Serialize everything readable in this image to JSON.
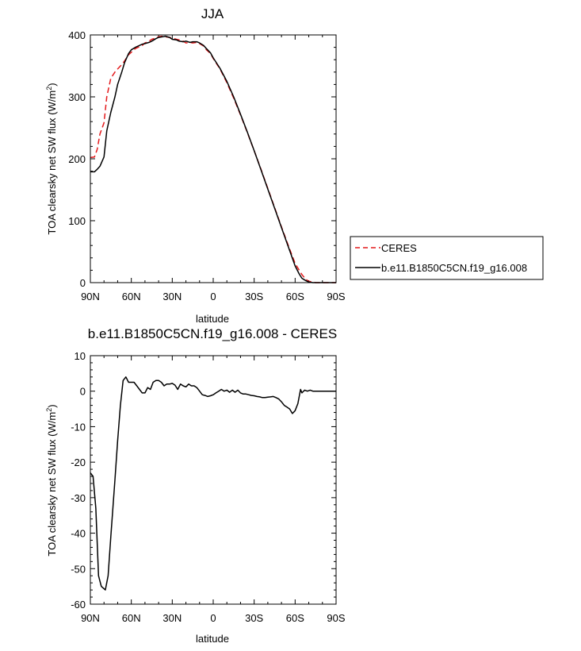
{
  "chart_data": [
    {
      "type": "line",
      "title": "JJA",
      "xlabel": "latitude",
      "ylabel": "TOA clearsky net SW flux (W/m²)",
      "ylabel_main": "TOA clearsky net SW flux (W/m",
      "ylabel_sup": "2",
      "ylabel_end": ")",
      "xlim": [
        90,
        -90
      ],
      "ylim": [
        0,
        400
      ],
      "xticks": [
        90,
        60,
        30,
        0,
        -30,
        -60,
        -90
      ],
      "xtick_labels": [
        "90N",
        "60N",
        "30N",
        "0",
        "30S",
        "60S",
        "90S"
      ],
      "yticks": [
        0,
        100,
        200,
        300,
        400
      ],
      "ytick_labels": [
        "0",
        "100",
        "200",
        "300",
        "400"
      ],
      "legend_position": "right",
      "series": [
        {
          "name": "CERES",
          "color": "#e41a1c",
          "dash": "dashed",
          "x": [
            90,
            87,
            85,
            83,
            80,
            78,
            75,
            72,
            70,
            67,
            65,
            62,
            60,
            57,
            55,
            52,
            50,
            47,
            45,
            42,
            40,
            37,
            35,
            32,
            30,
            27,
            25,
            22,
            20,
            17,
            15,
            12,
            10,
            7,
            5,
            2,
            0,
            -5,
            -10,
            -15,
            -20,
            -25,
            -30,
            -35,
            -40,
            -45,
            -50,
            -55,
            -60,
            -63,
            -65,
            -68,
            -70,
            -73,
            -75,
            -78,
            -80,
            -83,
            -85,
            -88,
            -90
          ],
          "y": [
            202,
            203,
            215,
            240,
            258,
            300,
            330,
            340,
            345,
            352,
            358,
            368,
            372,
            378,
            380,
            383,
            387,
            390,
            393,
            395,
            397,
            398,
            397,
            396,
            395,
            393,
            392,
            390,
            387,
            388,
            387,
            388,
            386,
            382,
            376,
            370,
            362,
            345,
            323,
            298,
            271,
            242,
            213,
            183,
            152,
            121,
            90,
            60,
            31,
            20,
            13,
            5,
            2,
            1,
            0,
            0,
            0,
            0,
            0,
            0,
            0
          ]
        },
        {
          "name": "b.e11.B1850C5CN.f19_g16.008",
          "color": "#000000",
          "dash": "solid",
          "x": [
            90,
            87,
            85,
            83,
            80,
            78,
            75,
            72,
            70,
            67,
            65,
            62,
            60,
            57,
            55,
            52,
            50,
            47,
            45,
            42,
            40,
            37,
            35,
            32,
            30,
            27,
            25,
            22,
            20,
            17,
            15,
            12,
            10,
            7,
            5,
            2,
            0,
            -5,
            -10,
            -15,
            -20,
            -25,
            -30,
            -35,
            -40,
            -45,
            -50,
            -55,
            -60,
            -63,
            -65,
            -68,
            -70,
            -73,
            -75,
            -78,
            -80,
            -83,
            -85,
            -88,
            -90
          ],
          "y": [
            179,
            179,
            183,
            188,
            203,
            245,
            275,
            300,
            320,
            340,
            355,
            370,
            376,
            380,
            382,
            385,
            386,
            388,
            390,
            394,
            396,
            397,
            398,
            396,
            393,
            392,
            390,
            389,
            390,
            388,
            389,
            389,
            387,
            383,
            378,
            371,
            363,
            346,
            325,
            300,
            272,
            243,
            213,
            182,
            151,
            120,
            89,
            58,
            27,
            14,
            7,
            3,
            1,
            0,
            0,
            0,
            0,
            0,
            0,
            0,
            0
          ]
        }
      ]
    },
    {
      "type": "line",
      "title": "b.e11.B1850C5CN.f19_g16.008 - CERES",
      "xlabel": "latitude",
      "ylabel": "TOA clearsky net SW flux (W/m²)",
      "ylabel_main": "TOA clearsky net SW flux (W/m",
      "ylabel_sup": "2",
      "ylabel_end": ")",
      "xlim": [
        90,
        -90
      ],
      "ylim": [
        -60,
        10
      ],
      "xticks": [
        90,
        60,
        30,
        0,
        -30,
        -60,
        -90
      ],
      "xtick_labels": [
        "90N",
        "60N",
        "30N",
        "0",
        "30S",
        "60S",
        "90S"
      ],
      "yticks": [
        -60,
        -50,
        -40,
        -30,
        -20,
        -10,
        0,
        10
      ],
      "ytick_labels": [
        "-60",
        "-50",
        "-40",
        "-30",
        "-20",
        "-10",
        "0",
        "10"
      ],
      "series": [
        {
          "color": "#000000",
          "dash": "solid",
          "x": [
            90,
            88,
            86,
            84,
            82,
            79,
            77,
            75,
            72,
            70,
            68,
            66,
            64,
            62,
            60,
            58,
            56,
            54,
            52,
            50,
            48,
            46,
            44,
            42,
            40,
            38,
            36,
            34,
            32,
            30,
            28,
            26,
            24,
            22,
            20,
            18,
            16,
            14,
            12,
            10,
            8,
            6,
            4,
            2,
            0,
            -2,
            -4,
            -6,
            -8,
            -10,
            -12,
            -14,
            -16,
            -18,
            -20,
            -22,
            -24,
            -26,
            -28,
            -30,
            -32,
            -34,
            -36,
            -38,
            -40,
            -42,
            -44,
            -46,
            -48,
            -50,
            -52,
            -54,
            -56,
            -58,
            -60,
            -62,
            -63,
            -64,
            -65,
            -67,
            -69,
            -71,
            -73,
            -75,
            -78,
            -80,
            -83,
            -85,
            -88,
            -90
          ],
          "y": [
            -23,
            -24,
            -33,
            -52,
            -55,
            -56,
            -52,
            -41,
            -25,
            -14,
            -4,
            3,
            4,
            2.5,
            2.5,
            2.5,
            1.5,
            0.5,
            -0.5,
            -0.5,
            1,
            0.5,
            2.5,
            3,
            3,
            2.5,
            1.5,
            2,
            2,
            2.2,
            1.7,
            0.5,
            2,
            1.5,
            1.2,
            2,
            1.5,
            1.5,
            1,
            0,
            -1,
            -1.2,
            -1.5,
            -1.3,
            -1,
            -0.5,
            0,
            0.5,
            0,
            0.3,
            -0.3,
            0.3,
            -0.3,
            0.3,
            -0.5,
            -0.8,
            -0.8,
            -1,
            -1.2,
            -1.3,
            -1.5,
            -1.6,
            -1.8,
            -1.8,
            -1.7,
            -1.6,
            -1.5,
            -1.8,
            -2.2,
            -3,
            -4,
            -4.5,
            -5,
            -6.3,
            -5.5,
            -3.5,
            -1.5,
            0.5,
            -0.5,
            0.3,
            0,
            0.3,
            0,
            0,
            0,
            0,
            0,
            0,
            0,
            0
          ]
        }
      ]
    }
  ]
}
